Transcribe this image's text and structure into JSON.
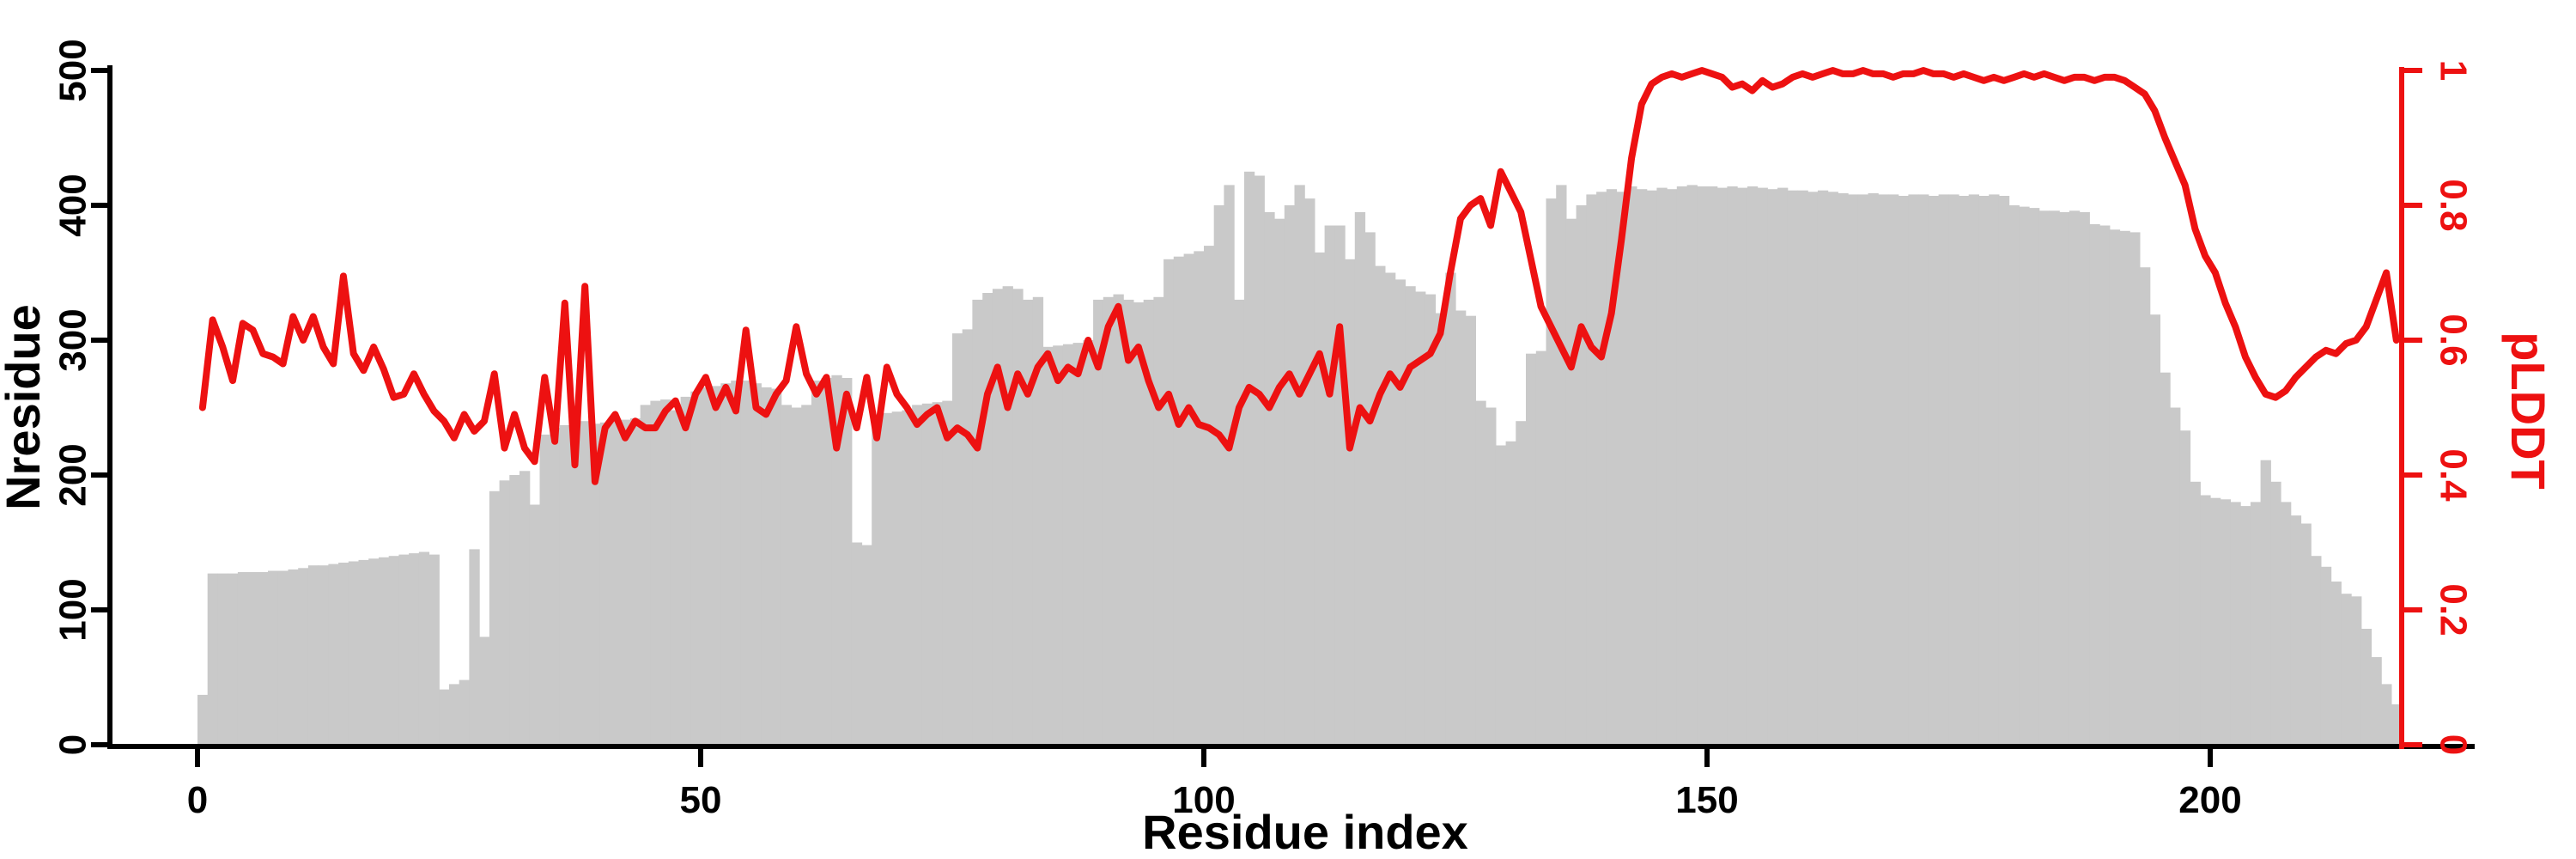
{
  "chart": {
    "background_color": "#ffffff",
    "bar_color": "#c9c9c9",
    "line_color": "#ed1111",
    "axis_color": "#000000",
    "left_axis_label": "Nresidue",
    "right_axis_label": "pLDDT",
    "x_axis_label": "Residue index",
    "x_tick_labels": [
      "0",
      "50",
      "100",
      "150",
      "200"
    ],
    "left_tick_labels": [
      "0",
      "100",
      "200",
      "300",
      "400",
      "500"
    ],
    "right_tick_labels": [
      "0",
      "0.2",
      "0.4",
      "0.6",
      "0.8",
      "1"
    ]
  },
  "chart_data": {
    "type": "bar",
    "title": "",
    "xlabel": "Residue index",
    "x_start": 0,
    "x_step": 1,
    "x_ticks": [
      0,
      50,
      100,
      150,
      200
    ],
    "grid": false,
    "legend": "none",
    "series": [
      {
        "name": "Nresidue",
        "type": "bar",
        "axis": "left",
        "ylabel": "Nresidue",
        "ylim": [
          0,
          500
        ],
        "yticks": [
          0,
          100,
          200,
          300,
          400,
          500
        ],
        "color": "#c9c9c9",
        "values": [
          37,
          127,
          127,
          127,
          128,
          128,
          128,
          129,
          129,
          130,
          131,
          133,
          133,
          134,
          135,
          136,
          137,
          138,
          139,
          140,
          141,
          142,
          143,
          141,
          41,
          45,
          48,
          145,
          80,
          188,
          196,
          200,
          203,
          178,
          230,
          235,
          237,
          238,
          240,
          238,
          239,
          240,
          241,
          242,
          252,
          255,
          256,
          248,
          258,
          262,
          265,
          266,
          268,
          270,
          270,
          268,
          265,
          264,
          252,
          250,
          252,
          270,
          272,
          274,
          272,
          150,
          148,
          245,
          246,
          247,
          248,
          252,
          253,
          254,
          255,
          305,
          308,
          330,
          335,
          338,
          340,
          338,
          330,
          332,
          295,
          296,
          297,
          298,
          300,
          330,
          332,
          334,
          330,
          328,
          330,
          332,
          360,
          362,
          364,
          366,
          370,
          400,
          415,
          330,
          425,
          422,
          395,
          390,
          400,
          415,
          405,
          365,
          385,
          385,
          360,
          395,
          380,
          355,
          350,
          345,
          340,
          336,
          334,
          320,
          350,
          322,
          318,
          255,
          250,
          222,
          225,
          240,
          290,
          292,
          405,
          415,
          390,
          400,
          408,
          410,
          412,
          410,
          414,
          412,
          411,
          413,
          412,
          414,
          415,
          414,
          414,
          413,
          414,
          413,
          414,
          413,
          412,
          413,
          411,
          411,
          410,
          411,
          410,
          409,
          408,
          408,
          409,
          408,
          408,
          407,
          408,
          408,
          407,
          408,
          408,
          407,
          408,
          407,
          408,
          407,
          400,
          399,
          398,
          396,
          396,
          395,
          396,
          395,
          386,
          385,
          382,
          381,
          380,
          354,
          319,
          276,
          250,
          233,
          195,
          185,
          183,
          182,
          180,
          177,
          180,
          211,
          195,
          180,
          170,
          164,
          140,
          132,
          121,
          112,
          110,
          86,
          65,
          45,
          30
        ]
      },
      {
        "name": "pLDDT",
        "type": "line",
        "axis": "right",
        "ylabel": "pLDDT",
        "ylim": [
          0,
          1
        ],
        "yticks": [
          0,
          0.2,
          0.4,
          0.6,
          0.8,
          1
        ],
        "color": "#ed1111",
        "values": [
          0.5,
          0.63,
          0.59,
          0.54,
          0.625,
          0.615,
          0.58,
          0.575,
          0.565,
          0.635,
          0.6,
          0.635,
          0.59,
          0.565,
          0.695,
          0.58,
          0.555,
          0.59,
          0.557,
          0.515,
          0.52,
          0.55,
          0.52,
          0.495,
          0.48,
          0.455,
          0.49,
          0.465,
          0.48,
          0.55,
          0.44,
          0.49,
          0.44,
          0.42,
          0.545,
          0.45,
          0.655,
          0.415,
          0.68,
          0.39,
          0.47,
          0.49,
          0.455,
          0.48,
          0.47,
          0.47,
          0.495,
          0.51,
          0.47,
          0.52,
          0.545,
          0.5,
          0.53,
          0.495,
          0.615,
          0.5,
          0.49,
          0.52,
          0.54,
          0.62,
          0.55,
          0.52,
          0.545,
          0.44,
          0.52,
          0.47,
          0.545,
          0.455,
          0.56,
          0.52,
          0.5,
          0.475,
          0.49,
          0.5,
          0.455,
          0.47,
          0.46,
          0.44,
          0.52,
          0.56,
          0.5,
          0.55,
          0.52,
          0.56,
          0.58,
          0.54,
          0.56,
          0.55,
          0.6,
          0.56,
          0.62,
          0.65,
          0.57,
          0.59,
          0.54,
          0.5,
          0.52,
          0.475,
          0.5,
          0.475,
          0.47,
          0.46,
          0.44,
          0.5,
          0.53,
          0.52,
          0.5,
          0.53,
          0.55,
          0.52,
          0.55,
          0.58,
          0.52,
          0.62,
          0.44,
          0.5,
          0.48,
          0.52,
          0.55,
          0.53,
          0.56,
          0.57,
          0.58,
          0.61,
          0.7,
          0.78,
          0.8,
          0.81,
          0.77,
          0.85,
          0.82,
          0.79,
          0.72,
          0.65,
          0.62,
          0.59,
          0.56,
          0.62,
          0.59,
          0.575,
          0.64,
          0.75,
          0.87,
          0.95,
          0.98,
          0.99,
          0.995,
          0.99,
          0.995,
          1.0,
          0.995,
          0.99,
          0.975,
          0.98,
          0.97,
          0.985,
          0.975,
          0.98,
          0.99,
          0.995,
          0.99,
          0.995,
          1.0,
          0.995,
          0.995,
          1.0,
          0.995,
          0.995,
          0.99,
          0.995,
          0.995,
          1.0,
          0.995,
          0.995,
          0.99,
          0.995,
          0.99,
          0.985,
          0.99,
          0.985,
          0.99,
          0.995,
          0.99,
          0.995,
          0.99,
          0.985,
          0.99,
          0.99,
          0.985,
          0.99,
          0.99,
          0.985,
          0.975,
          0.965,
          0.94,
          0.9,
          0.865,
          0.83,
          0.765,
          0.725,
          0.7,
          0.655,
          0.62,
          0.575,
          0.545,
          0.52,
          0.515,
          0.525,
          0.545,
          0.56,
          0.575,
          0.585,
          0.58,
          0.595,
          0.6,
          0.62,
          0.66,
          0.7,
          0.6
        ]
      }
    ]
  }
}
